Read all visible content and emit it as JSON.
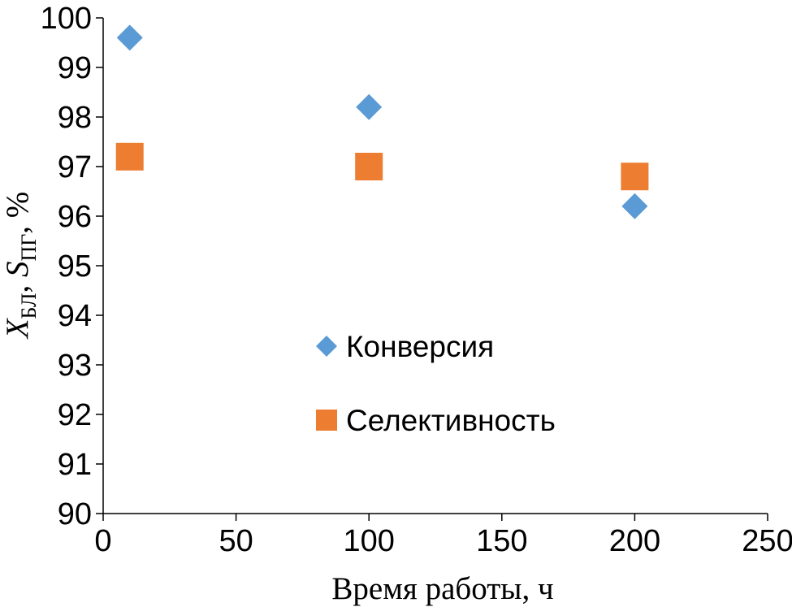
{
  "chart_data": {
    "type": "scatter",
    "title": "",
    "xlabel": "Время работы, ч",
    "ylabel": {
      "x_var": "X",
      "x_sub": "БЛ",
      "sep": ", ",
      "s_var": "S",
      "s_sub": "ПГ",
      "unit": ", %"
    },
    "xlim": [
      0,
      250
    ],
    "ylim": [
      90,
      100
    ],
    "x_ticks": [
      "0",
      "50",
      "100",
      "150",
      "200",
      "250"
    ],
    "y_ticks": [
      "90",
      "91",
      "92",
      "93",
      "94",
      "95",
      "96",
      "97",
      "98",
      "99",
      "100"
    ],
    "grid": false,
    "legend_position": "center",
    "series": [
      {
        "name": "Конверсия",
        "marker": "diamond",
        "color": "#5B9BD5",
        "x": [
          10,
          100,
          200
        ],
        "y": [
          99.6,
          98.2,
          96.2
        ]
      },
      {
        "name": "Селективность",
        "marker": "square",
        "color": "#ED7D31",
        "x": [
          10,
          100,
          200
        ],
        "y": [
          97.2,
          97.0,
          96.8
        ]
      }
    ]
  }
}
